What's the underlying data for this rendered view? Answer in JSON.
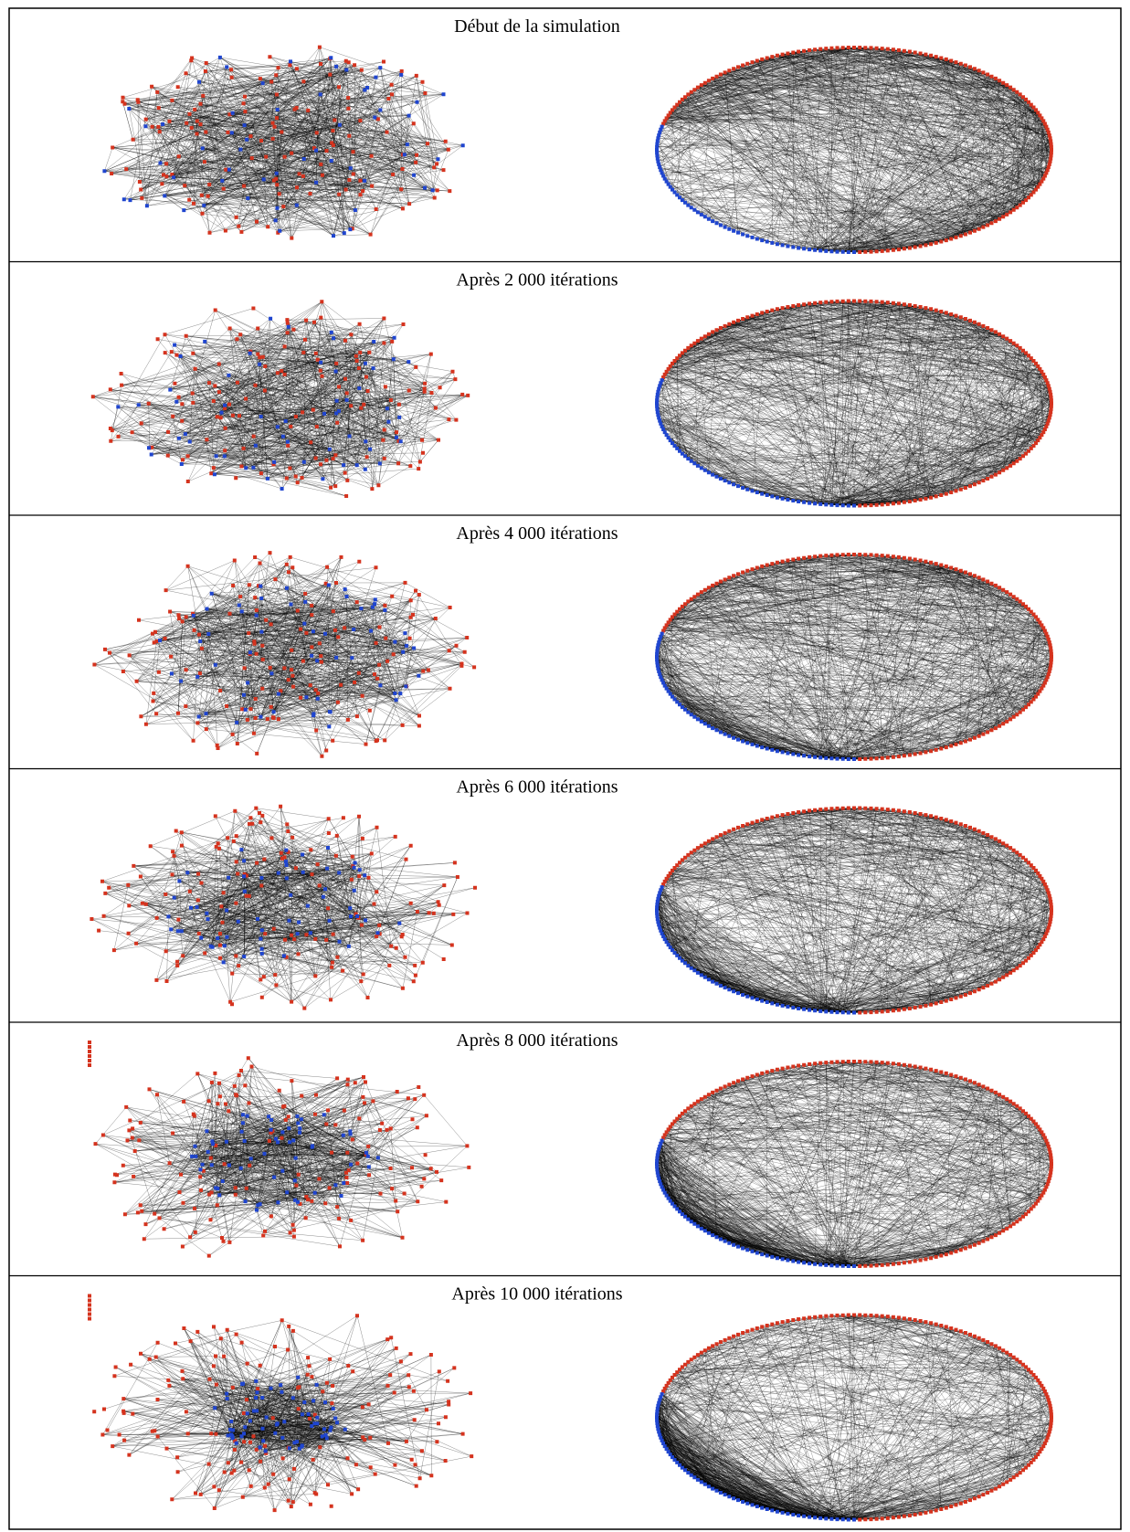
{
  "rows": [
    {
      "title": "Début de la simulation"
    },
    {
      "title": "Après 2 000 itérations"
    },
    {
      "title": "Après 4 000 itérations"
    },
    {
      "title": "Après 6 000 itérations"
    },
    {
      "title": "Après 8 000 itérations"
    },
    {
      "title": "Après 10 000 itérations"
    }
  ]
}
